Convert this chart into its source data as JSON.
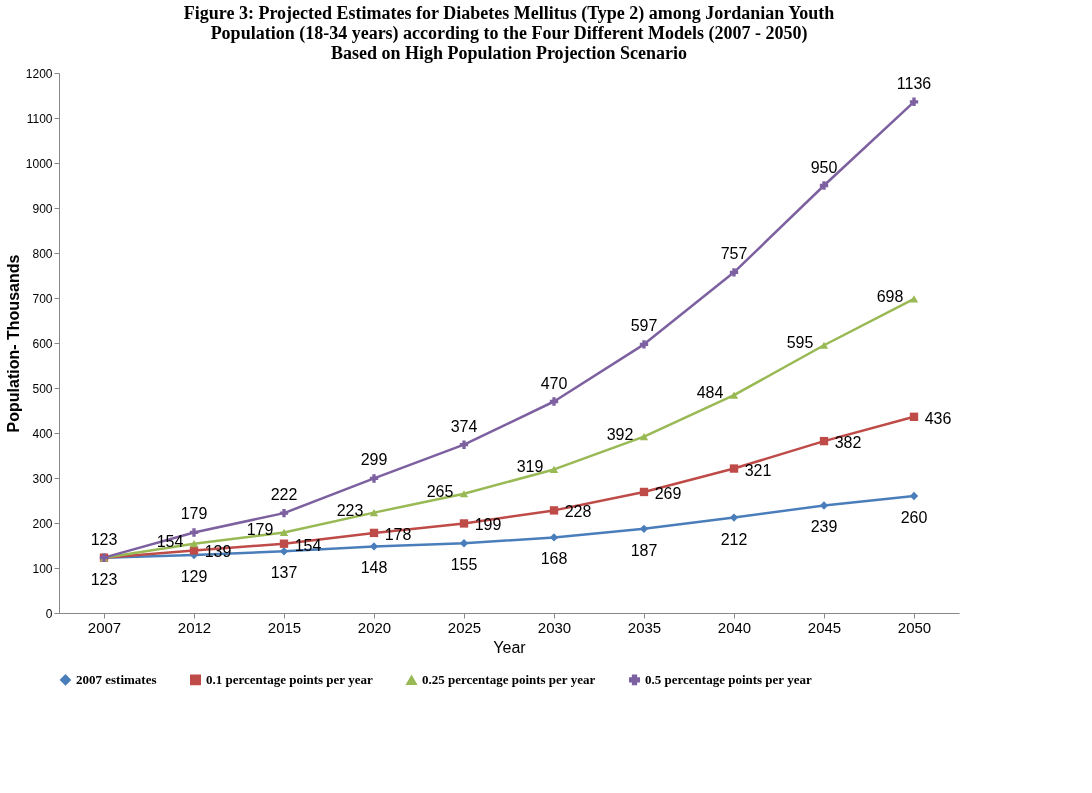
{
  "chart_data": {
    "type": "line",
    "title": "Figure 3: Projected Estimates for Diabetes Mellitus (Type 2) among Jordanian Youth\nPopulation (18-34 years) according to the Four Different Models (2007 - 2050)\nBased on High Population Projection Scenario",
    "xlabel": "Year",
    "ylabel": "Population- Thousands",
    "categories": [
      "2007",
      "2012",
      "2015",
      "2020",
      "2025",
      "2030",
      "2035",
      "2040",
      "2045",
      "2050"
    ],
    "series": [
      {
        "name": "2007 estimates",
        "color": "#4a7ebb",
        "marker": "diamond",
        "values": [
          123,
          129,
          137,
          148,
          155,
          168,
          187,
          212,
          239,
          260
        ],
        "value_labels": [
          "123",
          "129",
          "137",
          "148",
          "155",
          "168",
          "187",
          "212",
          "239",
          "260"
        ]
      },
      {
        "name": "0.1 percentage points per year",
        "color": "#be4b48",
        "marker": "square",
        "values": [
          123,
          139,
          154,
          178,
          199,
          228,
          269,
          321,
          382,
          436
        ],
        "value_labels": [
          null,
          "139",
          "154",
          "178",
          "199",
          "228",
          "269",
          "321",
          "382",
          "436"
        ]
      },
      {
        "name": "0.25 percentage points per year",
        "color": "#98b954",
        "marker": "triangle",
        "values": [
          123,
          154,
          179,
          223,
          265,
          319,
          392,
          484,
          595,
          698
        ],
        "value_labels": [
          null,
          "154",
          "179",
          "223",
          "265",
          "319",
          "392",
          "484",
          "595",
          "698"
        ]
      },
      {
        "name": "0.5 percentage points per year",
        "color": "#7d60a0",
        "marker": "cross",
        "values": [
          123,
          179,
          222,
          299,
          374,
          470,
          597,
          757,
          950,
          1136
        ],
        "value_labels": [
          "123",
          "179",
          "222",
          "299",
          "374",
          "470",
          "597",
          "757",
          "950",
          "1136"
        ]
      }
    ],
    "ylim": [
      0,
      1200
    ],
    "yticks": [
      0,
      100,
      200,
      300,
      400,
      500,
      600,
      700,
      800,
      900,
      1000,
      1100,
      1200
    ],
    "grid": false,
    "legend": "bottom",
    "line_style": "solid"
  }
}
